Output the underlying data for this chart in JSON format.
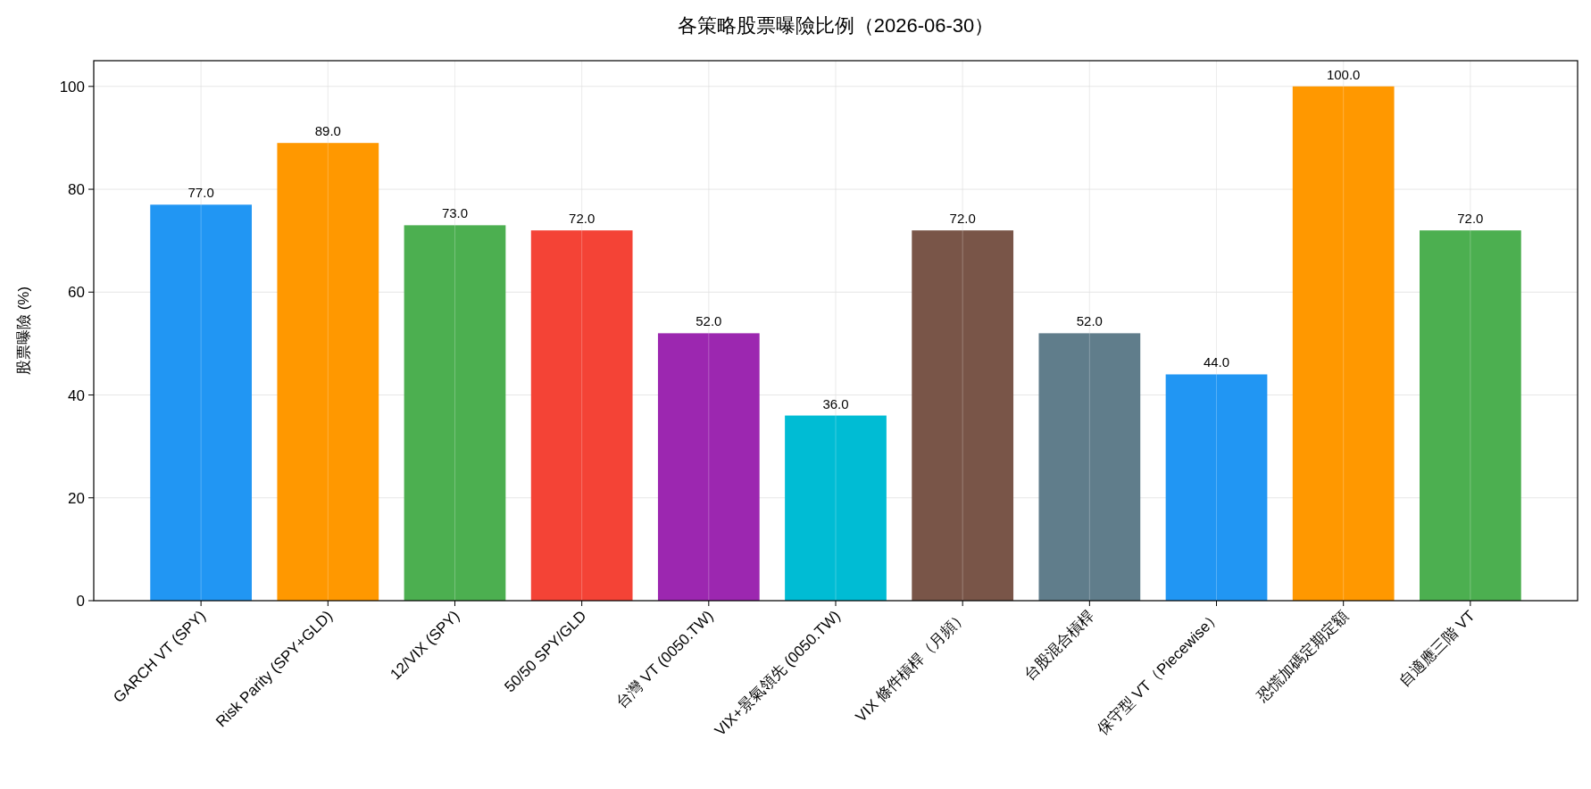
{
  "chart_data": {
    "type": "bar",
    "title": "各策略股票曝險比例（2026-06-30）",
    "ylabel": "股票曝險 (%)",
    "categories": [
      "GARCH VT (SPY)",
      "Risk Parity (SPY+GLD)",
      "12/VIX (SPY)",
      "50/50 SPY/GLD",
      "台灣 VT (0050.TW)",
      "VIX+景氣領先 (0050.TW)",
      "VIX 條件槓桿（月頻）",
      "台股混合槓桿",
      "保守型 VT（Piecewise）",
      "恐慌加碼定期定額",
      "自適應三階 VT"
    ],
    "values": [
      77,
      89,
      73,
      72,
      52,
      36,
      72,
      52,
      44,
      100,
      72
    ],
    "value_labels": [
      "77.0",
      "89.0",
      "73.0",
      "72.0",
      "52.0",
      "36.0",
      "72.0",
      "52.0",
      "44.0",
      "100.0",
      "72.0"
    ],
    "colors": [
      "#2196f3",
      "#ff9800",
      "#4caf50",
      "#f44336",
      "#9c27b0",
      "#00bcd4",
      "#795548",
      "#607d8b",
      "#2196f3",
      "#ff9800",
      "#4caf50"
    ],
    "ylim": [
      0,
      105
    ],
    "yticks": [
      0,
      20,
      40,
      60,
      80,
      100
    ],
    "grid": true
  }
}
